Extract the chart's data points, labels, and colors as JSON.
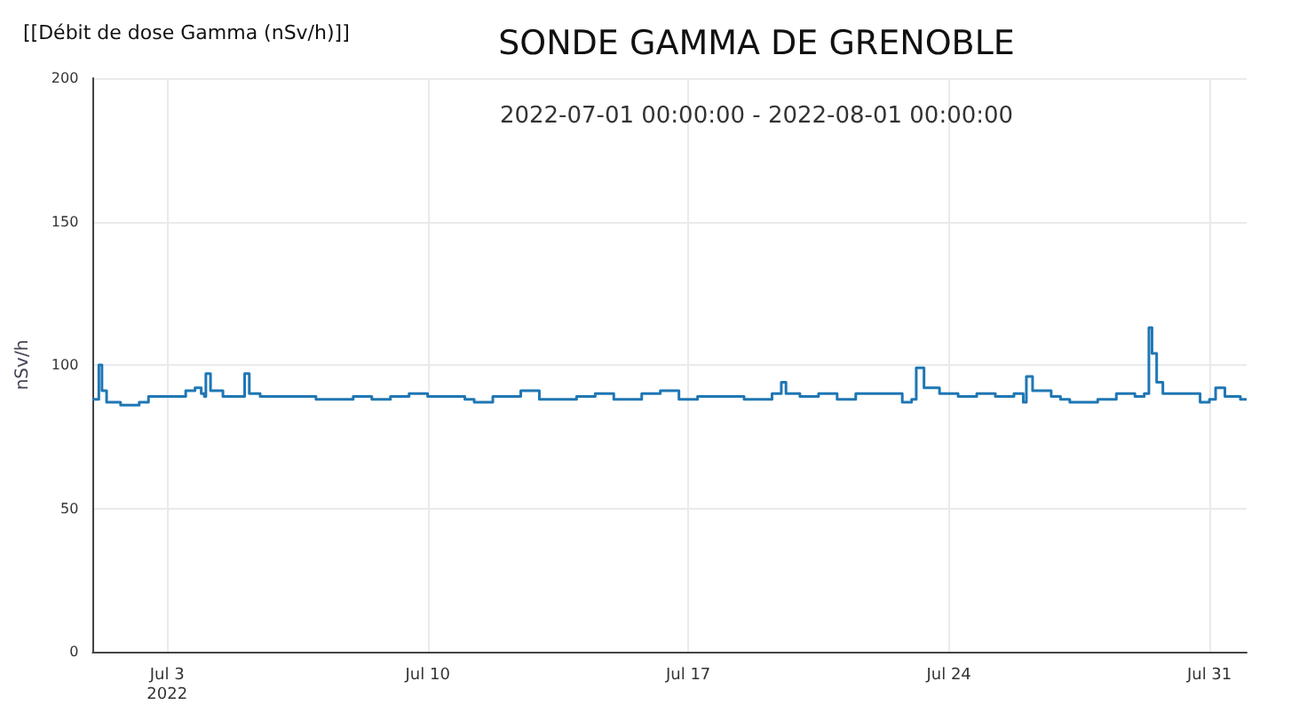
{
  "chart_data": {
    "type": "step",
    "title": "SONDE GAMMA DE GRENOBLE",
    "subtitle": "2022-07-01 00:00:00 - 2022-08-01 00:00:00",
    "ylabel": "nSv/h",
    "annotations": [
      "[[Débit de dose Gamma (nSv/h)]]"
    ],
    "xlim": [
      "2022-07-01T00:00",
      "2022-08-01T00:00"
    ],
    "xticks": [
      {
        "value": "2022-07-03",
        "label": "Jul 3\n2022"
      },
      {
        "value": "2022-07-10",
        "label": "Jul 10"
      },
      {
        "value": "2022-07-17",
        "label": "Jul 17"
      },
      {
        "value": "2022-07-24",
        "label": "Jul 24"
      },
      {
        "value": "2022-07-31",
        "label": "Jul 31"
      }
    ],
    "ylim": [
      0,
      200
    ],
    "yticks": [
      0,
      50,
      100,
      150,
      200
    ],
    "grid": true,
    "marker": "none",
    "line_style": "solid",
    "x": [
      "2022-07-01T00:00",
      "2022-07-01T03:00",
      "2022-07-01T04:00",
      "2022-07-01T06:00",
      "2022-07-01T09:00",
      "2022-07-01T18:00",
      "2022-07-02T06:00",
      "2022-07-02T12:00",
      "2022-07-03T00:00",
      "2022-07-03T12:00",
      "2022-07-03T18:00",
      "2022-07-03T22:00",
      "2022-07-04T00:00",
      "2022-07-04T01:00",
      "2022-07-04T04:00",
      "2022-07-04T12:00",
      "2022-07-05T00:00",
      "2022-07-05T02:00",
      "2022-07-05T05:00",
      "2022-07-05T12:00",
      "2022-07-06T00:00",
      "2022-07-07T00:00",
      "2022-07-08T00:00",
      "2022-07-08T12:00",
      "2022-07-09T00:00",
      "2022-07-09T12:00",
      "2022-07-10T00:00",
      "2022-07-10T12:00",
      "2022-07-11T00:00",
      "2022-07-11T06:00",
      "2022-07-11T18:00",
      "2022-07-12T12:00",
      "2022-07-13T00:00",
      "2022-07-13T12:00",
      "2022-07-14T00:00",
      "2022-07-14T12:00",
      "2022-07-15T00:00",
      "2022-07-15T18:00",
      "2022-07-16T06:00",
      "2022-07-16T18:00",
      "2022-07-17T06:00",
      "2022-07-18T00:00",
      "2022-07-18T12:00",
      "2022-07-19T06:00",
      "2022-07-19T12:00",
      "2022-07-19T15:00",
      "2022-07-20T00:00",
      "2022-07-20T12:00",
      "2022-07-21T00:00",
      "2022-07-21T12:00",
      "2022-07-22T06:00",
      "2022-07-22T18:00",
      "2022-07-23T00:00",
      "2022-07-23T03:00",
      "2022-07-23T08:00",
      "2022-07-23T18:00",
      "2022-07-24T06:00",
      "2022-07-24T18:00",
      "2022-07-25T06:00",
      "2022-07-25T18:00",
      "2022-07-26T00:00",
      "2022-07-26T02:00",
      "2022-07-26T06:00",
      "2022-07-26T18:00",
      "2022-07-27T00:00",
      "2022-07-27T06:00",
      "2022-07-28T00:00",
      "2022-07-28T12:00",
      "2022-07-29T00:00",
      "2022-07-29T06:00",
      "2022-07-29T09:00",
      "2022-07-29T11:00",
      "2022-07-29T14:00",
      "2022-07-29T18:00",
      "2022-07-30T06:00",
      "2022-07-30T18:00",
      "2022-07-31T00:00",
      "2022-07-31T04:00",
      "2022-07-31T10:00",
      "2022-07-31T20:00",
      "2022-08-01T00:00"
    ],
    "series": [
      {
        "color": "#1f77b4",
        "values": [
          88,
          88,
          100,
          91,
          87,
          86,
          87,
          89,
          89,
          91,
          92,
          90,
          89,
          97,
          91,
          89,
          89,
          97,
          90,
          89,
          89,
          88,
          89,
          88,
          89,
          90,
          89,
          89,
          88,
          87,
          89,
          91,
          88,
          88,
          89,
          90,
          88,
          90,
          91,
          88,
          89,
          89,
          88,
          90,
          94,
          90,
          89,
          90,
          88,
          90,
          90,
          87,
          88,
          99,
          92,
          90,
          89,
          90,
          89,
          90,
          87,
          96,
          91,
          89,
          88,
          87,
          88,
          90,
          89,
          90,
          113,
          104,
          94,
          90,
          90,
          87,
          88,
          92,
          89,
          88,
          88
        ]
      }
    ]
  }
}
